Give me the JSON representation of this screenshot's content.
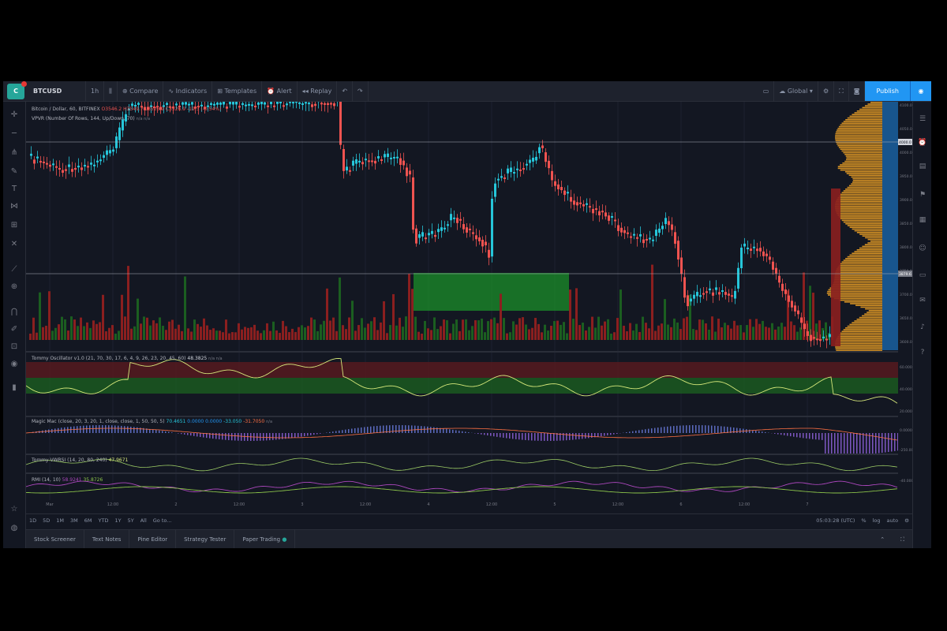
{
  "toolbar": {
    "symbol": "BTCUSD",
    "interval": "1h",
    "compare": "Compare",
    "indicators": "Indicators",
    "templates": "Templates",
    "alert": "Alert",
    "replay": "Replay",
    "global": "Global",
    "publish": "Publish"
  },
  "legend": {
    "title": "Bitcoin / Dollar, 60, BITFINEX",
    "ohlc_o": "O3546.2",
    "ohlc_h": "H3549.7",
    "ohlc_l": "L3526.9",
    "ohlc_c": "C3526.9",
    "change": "-19.3 (-0.54%)",
    "vpvr": "VPVR (Number Of Rows, 144, Up/Down, 70)",
    "vpvr_vals": "n/a  n/a"
  },
  "price_axis": [
    "4100.0",
    "4050.0",
    "4000.0",
    "3950.0",
    "3900.0",
    "3850.0",
    "3800.0",
    "3750.0",
    "3700.0",
    "3650.0",
    "3600.0"
  ],
  "crosshair_price": "3879.6",
  "price_tag_top": "4000.0",
  "oscillator": {
    "legend": "Tommy Oscillator v1.0 (21, 70, 30, 17, 6, 4, 9, 26, 23, 20, 45, 60)",
    "value": "48.3825",
    "extra": "n/a  n/a",
    "axis": [
      "60.0000",
      "40.0000",
      "20.0000"
    ]
  },
  "macd": {
    "legend": "Magic Mac (close, 20, 3, 20, 1, close, close, 1, 50, 50, 5)",
    "values": [
      "70.4651",
      "0.0000",
      "0.0000",
      "-33.050",
      "-31.7050",
      "n/a"
    ],
    "axis": [
      "0.0000",
      "-250.0000"
    ]
  },
  "vwrsi": {
    "legend": "Tommy VWRSI (14, 20, 80, 240)",
    "value": "47.9671",
    "axis": [
      "-40.0000"
    ]
  },
  "rmi": {
    "legend": "RMI (14, 10)",
    "value1": "58.9241",
    "value2": "35.8726"
  },
  "time_axis": [
    "Mar",
    "12:00",
    "2",
    "12:00",
    "3",
    "12:00",
    "4",
    "12:00",
    "5",
    "12:00",
    "6",
    "12:00",
    "7"
  ],
  "periods": [
    "1D",
    "5D",
    "1M",
    "3M",
    "6M",
    "YTD",
    "1Y",
    "5Y",
    "All",
    "Go to..."
  ],
  "clock": "05:03:28 (UTC)",
  "scale_opts": [
    "%",
    "log",
    "auto"
  ],
  "bottom_tabs": [
    "Stock Screener",
    "Text Notes",
    "Pine Editor",
    "Strategy Tester",
    "Paper Trading"
  ],
  "colors": {
    "up": "#26c6da",
    "down": "#ef5350",
    "zone": "#1b8f2a",
    "bg": "#131722"
  }
}
